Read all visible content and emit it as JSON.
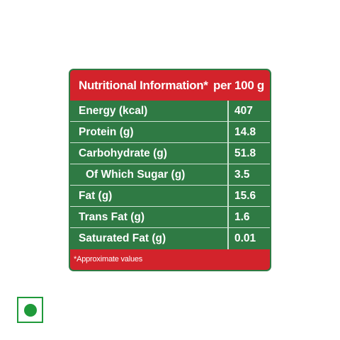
{
  "nutrition_table": {
    "header_title": "Nutritional Information*",
    "header_basis": "per 100 g",
    "rows": [
      {
        "label": "Energy (kcal)",
        "value": "407"
      },
      {
        "label": "Protein (g)",
        "value": "14.8"
      },
      {
        "label": "Carbohydrate (g)",
        "value": "51.8"
      },
      {
        "label": "Of Which Sugar (g)",
        "value": "3.5"
      },
      {
        "label": "Fat (g)",
        "value": "15.6"
      },
      {
        "label": "Trans Fat (g)",
        "value": "1.6"
      },
      {
        "label": "Saturated Fat (g)",
        "value": "0.01"
      }
    ],
    "footnote": "*Approximate values"
  },
  "symbol": {
    "icon": "vegetarian-mark-icon",
    "color": "#1f9a3a"
  },
  "colors": {
    "header_red": "#d3232b",
    "table_green": "#2f7a44"
  }
}
